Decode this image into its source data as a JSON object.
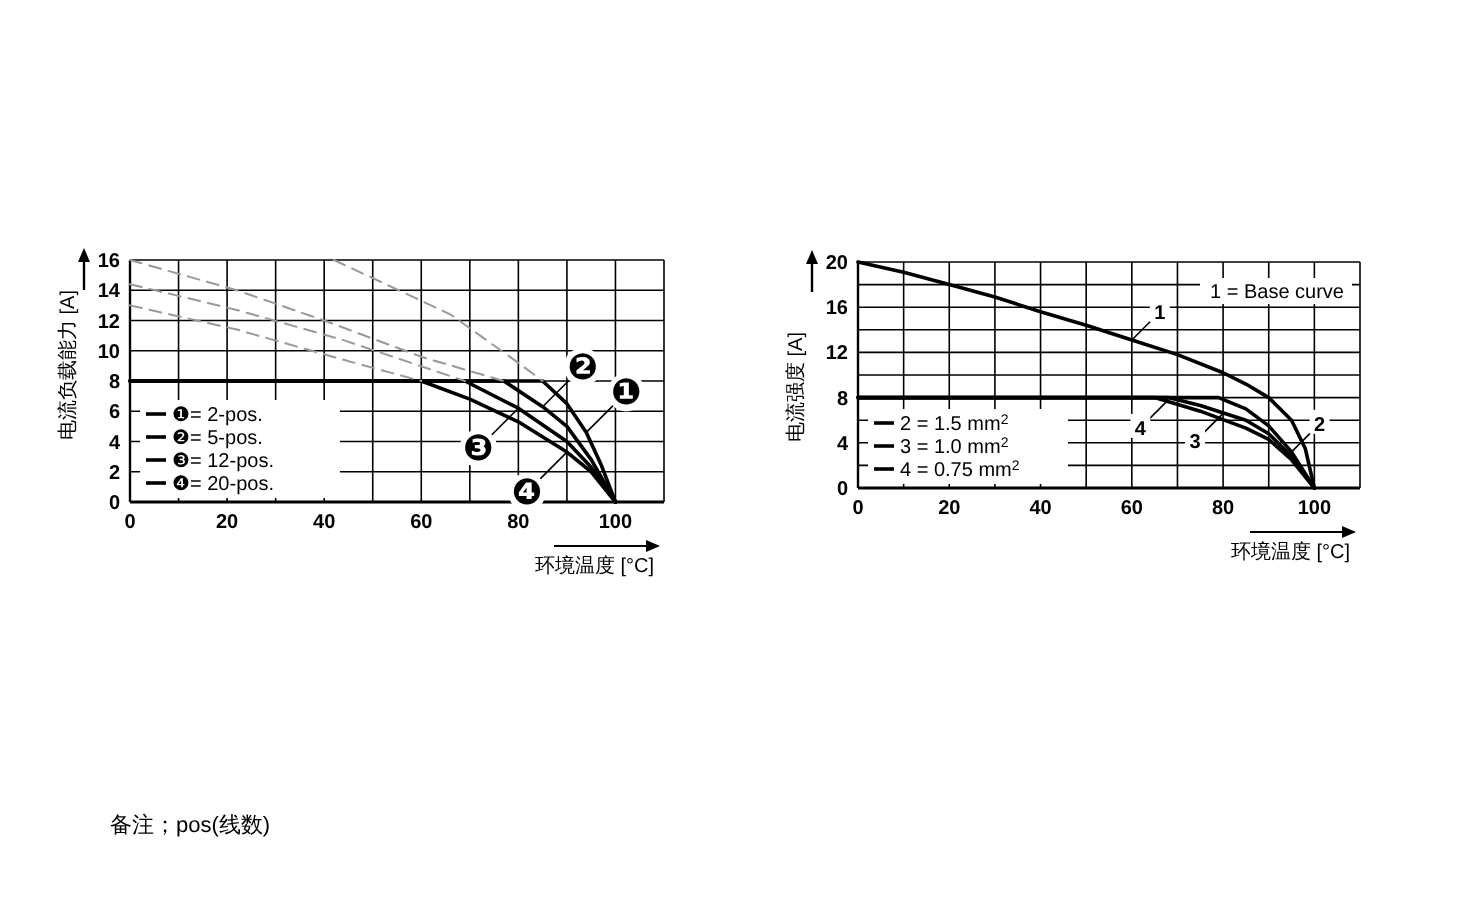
{
  "chart_data": [
    {
      "type": "line",
      "xlabel": "环境温度 [°C]",
      "ylabel": "电流负载能力 [A]",
      "xlim": [
        0,
        110
      ],
      "ylim": [
        0,
        16
      ],
      "xticks": [
        0,
        {
          "value": 10,
          "label": null
        },
        20,
        {
          "value": 30,
          "label": null
        },
        40,
        {
          "value": 50,
          "label": null
        },
        60,
        {
          "value": 70,
          "label": null
        },
        80,
        {
          "value": 90,
          "label": null
        },
        100,
        {
          "value": 110,
          "label": null
        }
      ],
      "yticks": [
        0,
        2,
        4,
        6,
        8,
        10,
        12,
        14,
        16
      ],
      "grid": true,
      "legend": "bottom left",
      "series": [
        {
          "name": "❶= 2-pos.",
          "color": "#000000",
          "x": [
            0,
            85,
            90,
            94,
            97,
            100
          ],
          "values": [
            8,
            8,
            6.5,
            4.6,
            2.5,
            0
          ]
        },
        {
          "name": "❷= 5-pos.",
          "color": "#000000",
          "x": [
            0,
            77,
            85,
            90,
            95,
            100
          ],
          "values": [
            8,
            8,
            6.3,
            5,
            2.8,
            0
          ]
        },
        {
          "name": "❸= 12-pos.",
          "color": "#000000",
          "x": [
            0,
            69,
            80,
            90,
            95,
            100
          ],
          "values": [
            8,
            8,
            6.2,
            4,
            2.3,
            0
          ]
        },
        {
          "name": "❹= 20-pos.",
          "color": "#000000",
          "x": [
            0,
            60,
            70,
            80,
            90,
            95,
            100
          ],
          "values": [
            8,
            8,
            6.8,
            5.3,
            3.3,
            2,
            0
          ]
        },
        {
          "color": "#999999",
          "line_style": "dashed",
          "x": [
            42,
            66,
            80,
            85
          ],
          "values": [
            16,
            12.4,
            9.2,
            8
          ]
        },
        {
          "color": "#999999",
          "line_style": "dashed",
          "x": [
            0,
            22,
            40,
            60,
            77
          ],
          "values": [
            16,
            14,
            12,
            9.6,
            8
          ]
        },
        {
          "color": "#999999",
          "line_style": "dashed",
          "x": [
            0,
            22,
            44,
            69
          ],
          "values": [
            14.4,
            12.7,
            10.7,
            8
          ]
        },
        {
          "color": "#999999",
          "line_style": "dashed",
          "x": [
            0,
            22,
            44,
            60
          ],
          "values": [
            13,
            11.4,
            9.4,
            8
          ]
        }
      ],
      "annotations": [
        {
          "text": "❶",
          "x": 94,
          "y": 4.6
        },
        {
          "text": "❸",
          "x": 80,
          "y": 6.2
        },
        {
          "text": "❷",
          "x": 85,
          "y": 6.3
        },
        {
          "text": "❹",
          "x": 90,
          "y": 3.3
        },
        "备注；pos(线数)"
      ]
    },
    {
      "type": "line",
      "xlabel": "环境温度 [°C]",
      "ylabel": "电流强度 [A]",
      "xlim": [
        0,
        110
      ],
      "ylim": [
        0,
        20
      ],
      "xticks": [
        0,
        {
          "value": 10,
          "label": null
        },
        20,
        {
          "value": 30,
          "label": null
        },
        40,
        {
          "value": 50,
          "label": null
        },
        60,
        {
          "value": 70,
          "label": null
        },
        80,
        {
          "value": 90,
          "label": null
        },
        100,
        {
          "value": 110,
          "label": null
        }
      ],
      "yticks": [
        0,
        {
          "value": 2,
          "label": null
        },
        4,
        {
          "value": 6,
          "label": null
        },
        8,
        {
          "value": 10,
          "label": null
        },
        12,
        {
          "value": 14,
          "label": null
        },
        16,
        {
          "value": 18,
          "label": null
        },
        20
      ],
      "grid": true,
      "legend": "bottom left",
      "series": [
        {
          "color": "#000000",
          "x": [
            0,
            10,
            20,
            30,
            40,
            50,
            60,
            70,
            80,
            85,
            90,
            95,
            98,
            100
          ],
          "values": [
            20,
            19.1,
            18,
            16.9,
            15.6,
            14.4,
            13.1,
            11.8,
            10.2,
            9.2,
            8,
            6,
            3.5,
            0
          ]
        },
        {
          "name": "2 = 1.5 mm$^{2}$",
          "color": "#000000",
          "x": [
            0,
            79,
            85,
            90,
            95,
            100
          ],
          "values": [
            8,
            8,
            7,
            5.5,
            3.2,
            0
          ]
        },
        {
          "name": "3 = 1.0 mm$^{2}$",
          "color": "#000000",
          "x": [
            0,
            68,
            75,
            85,
            90,
            95,
            100
          ],
          "values": [
            8,
            8,
            7.3,
            6,
            4.8,
            2.8,
            0
          ]
        },
        {
          "name": "4 = 0.75 mm$^{2}$",
          "color": "#000000",
          "x": [
            0,
            65,
            75,
            85,
            90,
            95,
            100
          ],
          "values": [
            8,
            8,
            6.8,
            5.3,
            4.3,
            2.5,
            0
          ]
        }
      ],
      "annotations": [
        "1 = Base curve",
        {
          "text": "1",
          "x": 60,
          "y": 13.1
        },
        {
          "text": "3",
          "x": 80,
          "y": 6.6
        },
        {
          "text": "2",
          "x": 95,
          "y": 3.2
        },
        {
          "text": "4",
          "x": 68,
          "y": 7.8
        }
      ]
    }
  ]
}
